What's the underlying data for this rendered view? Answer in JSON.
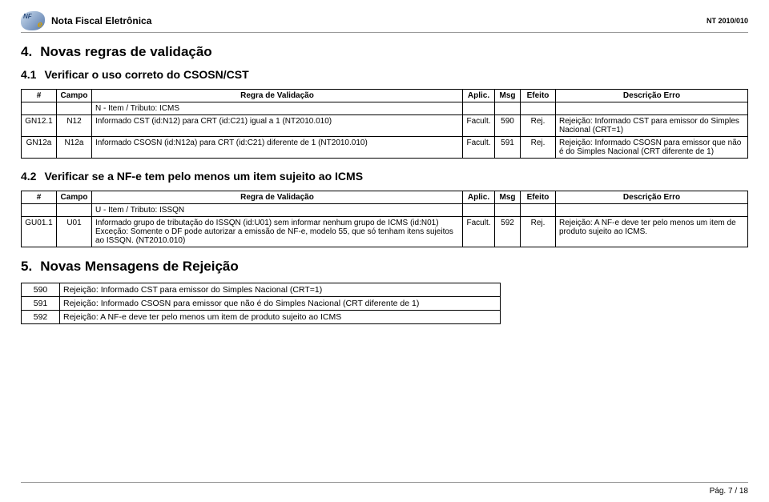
{
  "header": {
    "title": "Nota Fiscal Eletrônica",
    "doc_ref": "NT 2010/010"
  },
  "section4": {
    "number": "4.",
    "title": "Novas regras de validação"
  },
  "section41": {
    "number": "4.1",
    "title": "Verificar o uso correto do CSOSN/CST"
  },
  "section42": {
    "number": "4.2",
    "title": "Verificar se a NF-e tem pelo menos um item sujeito ao ICMS"
  },
  "section5": {
    "number": "5.",
    "title": "Novas Mensagens de Rejeição"
  },
  "table_headers": {
    "hash": "#",
    "campo": "Campo",
    "regra": "Regra de Validação",
    "aplic": "Aplic.",
    "msg": "Msg",
    "efeito": "Efeito",
    "desc": "Descrição Erro"
  },
  "table1": {
    "subhead": "N - Item / Tributo: ICMS",
    "rows": [
      {
        "id": "GN12.1",
        "campo": "N12",
        "regra": "Informado CST (id:N12) para CRT (id:C21) igual a 1 (NT2010.010)",
        "aplic": "Facult.",
        "msg": "590",
        "efeito": "Rej.",
        "desc": "Rejeição: Informado CST para emissor do Simples Nacional (CRT=1)"
      },
      {
        "id": "GN12a",
        "campo": "N12a",
        "regra": "Informado CSOSN (id:N12a) para CRT (id:C21) diferente de 1 (NT2010.010)",
        "aplic": "Facult.",
        "msg": "591",
        "efeito": "Rej.",
        "desc": "Rejeição: Informado CSOSN para emissor que não é do Simples Nacional (CRT diferente de 1)"
      }
    ]
  },
  "table2": {
    "subhead": "U - Item / Tributo: ISSQN",
    "rows": [
      {
        "id": "GU01.1",
        "campo": "U01",
        "regra": "Informado grupo de tributação do ISSQN (id:U01) sem informar nenhum grupo de ICMS (id:N01)\nExceção: Somente o DF pode autorizar a emissão de NF-e, modelo 55, que só tenham itens sujeitos ao ISSQN. (NT2010.010)",
        "aplic": "Facult.",
        "msg": "592",
        "efeito": "Rej.",
        "desc": "Rejeição: A NF-e deve ter pelo menos um item de produto sujeito ao ICMS."
      }
    ]
  },
  "msg_table": {
    "rows": [
      {
        "code": "590",
        "text": "Rejeição: Informado CST para emissor do Simples Nacional (CRT=1)"
      },
      {
        "code": "591",
        "text": "Rejeição: Informado CSOSN para emissor que não é do Simples Nacional (CRT diferente de 1)"
      },
      {
        "code": "592",
        "text": "Rejeição: A NF-e deve ter pelo menos um item de produto sujeito ao ICMS"
      }
    ]
  },
  "footer": "Pág. 7 / 18"
}
